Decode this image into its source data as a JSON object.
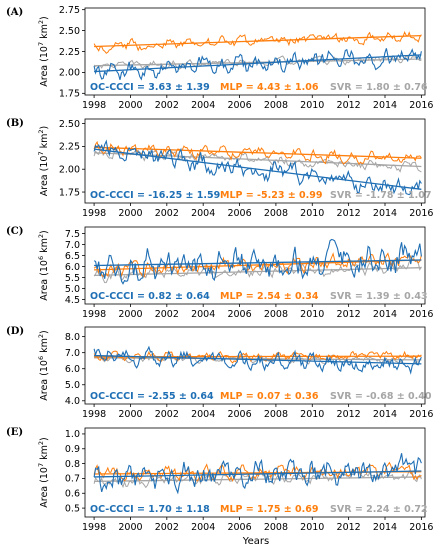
{
  "figure": {
    "x_label": "Years",
    "y_label_prefix": "Area (",
    "y_label_suffix": " km",
    "y_label_close": ")",
    "y_label_sq": "2",
    "colors": {
      "OC-CCCI": "#1f6fb5",
      "MLP": "#ff7f0e",
      "SVR": "#a6a6a6"
    }
  },
  "chart_data": [
    {
      "type": "line",
      "panel": "(A)",
      "y_unit_base": "10",
      "y_unit_exp": "7",
      "xlim": [
        1997.5,
        2016.2
      ],
      "ylim": [
        1.73,
        2.77
      ],
      "x_ticks": [
        "1998",
        "2000",
        "2002",
        "2004",
        "2006",
        "2008",
        "2010",
        "2012",
        "2014",
        "2016"
      ],
      "y_ticks": [
        "1.75",
        "2.00",
        "2.25",
        "2.50",
        "2.75"
      ],
      "y_tick_values": [
        1.75,
        2.0,
        2.25,
        2.5,
        2.75
      ],
      "series": [
        {
          "name": "OC-CCCI",
          "start": 2.01,
          "end": 2.21,
          "amplitude": 0.12
        },
        {
          "name": "MLP",
          "start": 2.31,
          "end": 2.44,
          "amplitude": 0.07
        },
        {
          "name": "SVR",
          "start": 2.08,
          "end": 2.16,
          "amplitude": 0.05
        }
      ],
      "annotations": [
        {
          "series": "OC-CCCI",
          "text": "OC-CCCI = 3.63 ± 1.39"
        },
        {
          "series": "MLP",
          "text": "MLP = 4.43 ± 1.06"
        },
        {
          "series": "SVR",
          "text": "SVR = 1.80 ± 0.76"
        }
      ]
    },
    {
      "type": "line",
      "panel": "(B)",
      "y_unit_base": "10",
      "y_unit_exp": "7",
      "xlim": [
        1997.5,
        2016.2
      ],
      "ylim": [
        1.63,
        2.55
      ],
      "x_ticks": [
        "1998",
        "2000",
        "2002",
        "2004",
        "2006",
        "2008",
        "2010",
        "2012",
        "2014",
        "2016"
      ],
      "y_ticks": [
        "1.75",
        "2.00",
        "2.25",
        "2.50"
      ],
      "y_tick_values": [
        1.75,
        2.0,
        2.25,
        2.5
      ],
      "series": [
        {
          "name": "OC-CCCI",
          "start": 2.22,
          "end": 1.78,
          "amplitude": 0.12
        },
        {
          "name": "MLP",
          "start": 2.24,
          "end": 2.12,
          "amplitude": 0.07
        },
        {
          "name": "SVR",
          "start": 2.18,
          "end": 2.03,
          "amplitude": 0.06
        }
      ],
      "annotations": [
        {
          "series": "OC-CCCI",
          "text": "OC-CCCI = -16.25 ± 1.59"
        },
        {
          "series": "MLP",
          "text": "MLP = -5.23 ± 0.99"
        },
        {
          "series": "SVR",
          "text": "SVR = -1.78 ± 1.07"
        }
      ]
    },
    {
      "type": "line",
      "panel": "(C)",
      "y_unit_base": "10",
      "y_unit_exp": "6",
      "xlim": [
        1997.5,
        2016.2
      ],
      "ylim": [
        4.3,
        7.8
      ],
      "x_ticks": [
        "1998",
        "2000",
        "2002",
        "2004",
        "2006",
        "2008",
        "2010",
        "2012",
        "2014",
        "2016"
      ],
      "y_ticks": [
        "4.5",
        "5.0",
        "5.5",
        "6.0",
        "6.5",
        "7.0",
        "7.5"
      ],
      "y_tick_values": [
        4.5,
        5.0,
        5.5,
        6.0,
        6.5,
        7.0,
        7.5
      ],
      "series": [
        {
          "name": "OC-CCCI",
          "start": 6.05,
          "end": 6.3,
          "amplitude": 0.8
        },
        {
          "name": "MLP",
          "start": 5.85,
          "end": 6.3,
          "amplitude": 0.35
        },
        {
          "name": "SVR",
          "start": 5.6,
          "end": 5.95,
          "amplitude": 0.3
        }
      ],
      "annotations": [
        {
          "series": "OC-CCCI",
          "text": "OC-CCCI = 0.82 ± 0.64"
        },
        {
          "series": "MLP",
          "text": "MLP = 2.54 ± 0.34"
        },
        {
          "series": "SVR",
          "text": "SVR = 1.39 ± 0.43"
        }
      ]
    },
    {
      "type": "line",
      "panel": "(D)",
      "y_unit_base": "10",
      "y_unit_exp": "6",
      "xlim": [
        1997.5,
        2016.2
      ],
      "ylim": [
        3.8,
        8.6
      ],
      "x_ticks": [
        "1998",
        "2000",
        "2002",
        "2004",
        "2006",
        "2008",
        "2010",
        "2012",
        "2014",
        "2016"
      ],
      "y_ticks": [
        "4.0",
        "5.0",
        "6.0",
        "7.0",
        "8.0"
      ],
      "y_tick_values": [
        4.0,
        5.0,
        6.0,
        7.0,
        8.0
      ],
      "series": [
        {
          "name": "OC-CCCI",
          "start": 6.82,
          "end": 6.3,
          "amplitude": 0.55
        },
        {
          "name": "MLP",
          "start": 6.74,
          "end": 6.78,
          "amplitude": 0.3
        },
        {
          "name": "SVR",
          "start": 6.68,
          "end": 6.55,
          "amplitude": 0.25
        }
      ],
      "annotations": [
        {
          "series": "OC-CCCI",
          "text": "OC-CCCI = -2.55 ± 0.64"
        },
        {
          "series": "MLP",
          "text": "MLP = 0.07 ± 0.36"
        },
        {
          "series": "SVR",
          "text": "SVR = -0.68 ± 0.40"
        }
      ]
    },
    {
      "type": "line",
      "panel": "(E)",
      "y_unit_base": "10",
      "y_unit_exp": "7",
      "xlim": [
        1997.5,
        2016.2
      ],
      "ylim": [
        0.44,
        1.04
      ],
      "x_ticks": [
        "1998",
        "2000",
        "2002",
        "2004",
        "2006",
        "2008",
        "2010",
        "2012",
        "2014",
        "2016"
      ],
      "y_ticks": [
        "0.5",
        "0.6",
        "0.7",
        "0.8",
        "0.9",
        "1.0"
      ],
      "y_tick_values": [
        0.5,
        0.6,
        0.7,
        0.8,
        0.9,
        1.0
      ],
      "series": [
        {
          "name": "OC-CCCI",
          "start": 0.71,
          "end": 0.75,
          "amplitude": 0.1
        },
        {
          "name": "MLP",
          "start": 0.73,
          "end": 0.745,
          "amplitude": 0.05
        },
        {
          "name": "SVR",
          "start": 0.68,
          "end": 0.71,
          "amplitude": 0.04
        }
      ],
      "annotations": [
        {
          "series": "OC-CCCI",
          "text": "OC-CCCI = 1.70 ± 1.18"
        },
        {
          "series": "MLP",
          "text": "MLP = 1.75 ± 0.69"
        },
        {
          "series": "SVR",
          "text": "SVR = 2.24 ± 0.72"
        }
      ]
    }
  ]
}
